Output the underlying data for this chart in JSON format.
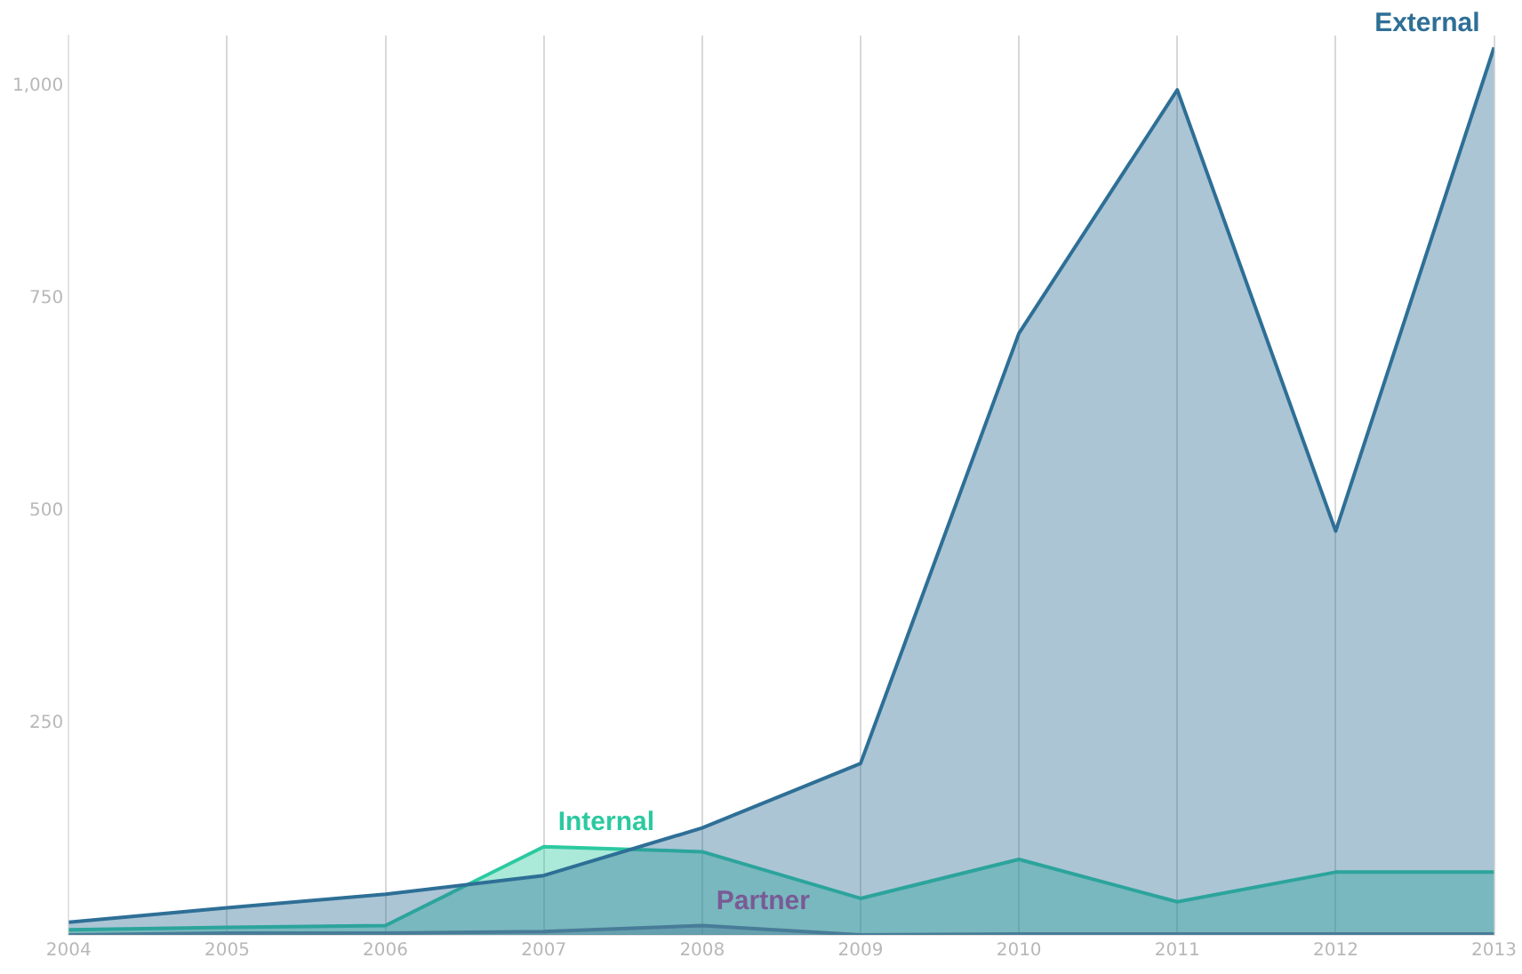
{
  "chart_data": {
    "type": "area",
    "x": [
      2004,
      2005,
      2006,
      2007,
      2008,
      2009,
      2010,
      2011,
      2012,
      2013
    ],
    "series": [
      {
        "name": "External",
        "color": "#2e6f96",
        "values": [
          15,
          32,
          48,
          70,
          126,
          202,
          709,
          996,
          476,
          1046
        ]
      },
      {
        "name": "Internal",
        "color": "#2cc9a0",
        "values": [
          6,
          9,
          11,
          104,
          98,
          43,
          89,
          39,
          74,
          74
        ]
      },
      {
        "name": "Partner",
        "color": "#7a5a95",
        "values": [
          0,
          2,
          2,
          4,
          11,
          0,
          1,
          1,
          1,
          1
        ]
      }
    ],
    "xlim": [
      2004,
      2013
    ],
    "xticks": [
      2004,
      2005,
      2006,
      2007,
      2008,
      2009,
      2010,
      2011,
      2012,
      2013
    ],
    "ylim": [
      0,
      1060
    ],
    "yticks": [
      250,
      500,
      750,
      {
        "value": 1000,
        "label": "1,000"
      }
    ],
    "grid": "x",
    "legend": false
  }
}
